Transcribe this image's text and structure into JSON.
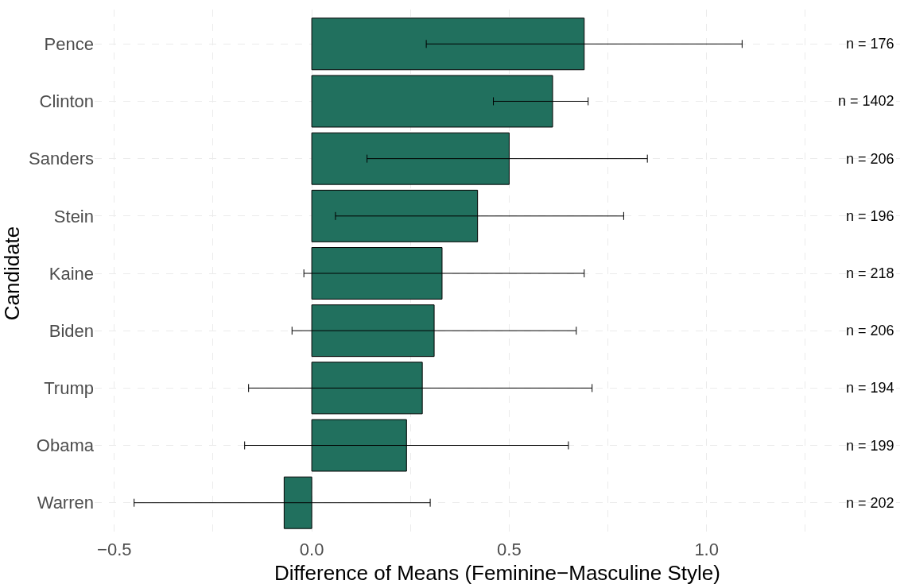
{
  "chart_data": {
    "type": "bar",
    "orientation": "horizontal",
    "xlabel": "Difference of Means (Feminine−Masculine Style)",
    "ylabel": "Candidate",
    "categories": [
      "Pence",
      "Clinton",
      "Sanders",
      "Stein",
      "Kaine",
      "Biden",
      "Trump",
      "Obama",
      "Warren"
    ],
    "values": [
      0.69,
      0.61,
      0.5,
      0.42,
      0.33,
      0.31,
      0.28,
      0.24,
      -0.07
    ],
    "errors": [
      [
        0.29,
        1.09
      ],
      [
        0.46,
        0.7
      ],
      [
        0.14,
        0.85
      ],
      [
        0.06,
        0.79
      ],
      [
        -0.02,
        0.69
      ],
      [
        -0.05,
        0.67
      ],
      [
        -0.16,
        0.71
      ],
      [
        -0.17,
        0.65
      ],
      [
        -0.45,
        0.3
      ]
    ],
    "color": "#21705e",
    "xlim": [
      -0.55,
      1.49
    ],
    "xticks": [
      {
        "value": -0.5,
        "label": "−0.5"
      },
      {
        "value": -0.25,
        "label": null
      },
      {
        "value": 0,
        "label": "0.0"
      },
      {
        "value": 0.25,
        "label": null
      },
      0.5,
      {
        "value": 0.75,
        "label": null
      },
      {
        "value": 1,
        "label": "1.0"
      },
      {
        "value": 1.25,
        "label": null
      }
    ],
    "grid": true,
    "annotations": [
      "n = 176",
      "n = 1402",
      "n = 206",
      "n = 196",
      "n = 218",
      "n = 206",
      "n = 194",
      "n = 199",
      "n = 202"
    ]
  }
}
